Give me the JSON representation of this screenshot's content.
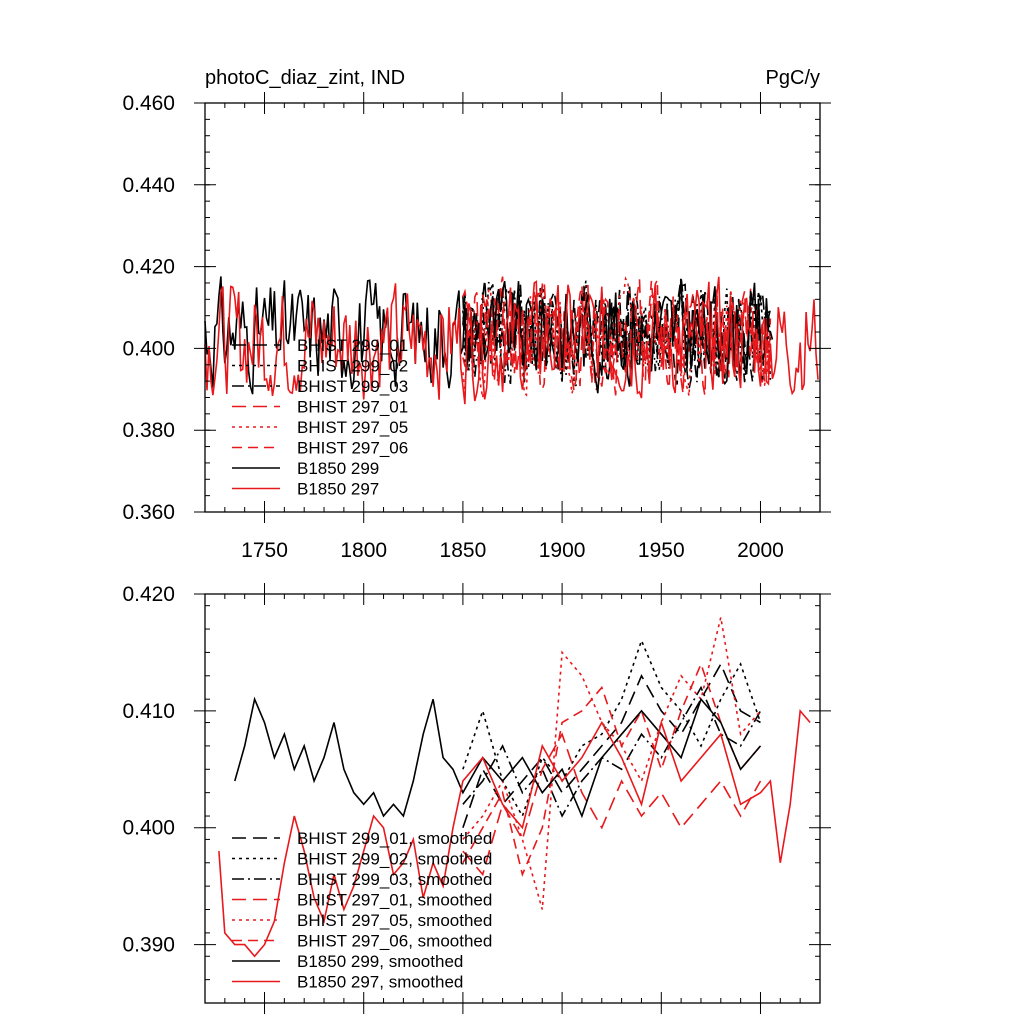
{
  "chart_data": [
    {
      "type": "line",
      "title": "photoC_diaz_zint, IND",
      "units": "PgC/y",
      "xlim": [
        1720,
        2030
      ],
      "ylim": [
        0.36,
        0.46
      ],
      "xticks": [
        1750,
        1800,
        1850,
        1900,
        1950,
        2000
      ],
      "xtick_labels": [
        "1750",
        "1800",
        "1850",
        "1900",
        "1950",
        "2000"
      ],
      "yticks": [
        0.36,
        0.38,
        0.4,
        0.42,
        0.44,
        0.46
      ],
      "ytick_labels": [
        "0.360",
        "0.380",
        "0.400",
        "0.420",
        "0.440",
        "0.460"
      ],
      "grid": false,
      "legend_position": "lower-left",
      "series": [
        {
          "name": "BHIST 299_01",
          "color": "#000000",
          "dash": "long-dash",
          "x_start": 1850,
          "x_end": 2005,
          "mean": 0.404,
          "amplitude": 0.011,
          "seed": 11
        },
        {
          "name": "BHIST 299_02",
          "color": "#000000",
          "dash": "dotted",
          "x_start": 1850,
          "x_end": 2005,
          "mean": 0.404,
          "amplitude": 0.011,
          "seed": 12
        },
        {
          "name": "BHIST 299_03",
          "color": "#000000",
          "dash": "dash-dot",
          "x_start": 1850,
          "x_end": 2005,
          "mean": 0.404,
          "amplitude": 0.011,
          "seed": 13
        },
        {
          "name": "BHIST 297_01",
          "color": "#e8191c",
          "dash": "long-dash",
          "x_start": 1850,
          "x_end": 2005,
          "mean": 0.403,
          "amplitude": 0.011,
          "seed": 21
        },
        {
          "name": "BHIST 297_05",
          "color": "#e8191c",
          "dash": "dotted",
          "x_start": 1850,
          "x_end": 2005,
          "mean": 0.403,
          "amplitude": 0.011,
          "seed": 22
        },
        {
          "name": "BHIST 297_06",
          "color": "#e8191c",
          "dash": "long-dash-2",
          "x_start": 1850,
          "x_end": 2005,
          "mean": 0.403,
          "amplitude": 0.011,
          "seed": 23
        },
        {
          "name": "B1850 299",
          "color": "#000000",
          "dash": "solid",
          "x_start": 1720,
          "x_end": 2006,
          "mean": 0.404,
          "amplitude": 0.011,
          "seed": 31
        },
        {
          "name": "B1850 297",
          "color": "#e8191c",
          "dash": "solid",
          "x_start": 1720,
          "x_end": 2029,
          "mean": 0.402,
          "amplitude": 0.012,
          "seed": 32
        }
      ]
    },
    {
      "type": "line",
      "title": "",
      "xlim": [
        1720,
        2030
      ],
      "ylim": [
        0.385,
        0.42
      ],
      "xticks": [
        1750,
        1800,
        1850,
        1900,
        1950,
        2000
      ],
      "yticks": [
        0.39,
        0.4,
        0.41,
        0.42
      ],
      "ytick_labels": [
        "0.390",
        "0.400",
        "0.410",
        "0.420"
      ],
      "grid": false,
      "legend_position": "lower-left",
      "series": [
        {
          "name": "BHIST 299_01, smoothed",
          "color": "#000000",
          "dash": "long-dash",
          "x": [
            1850,
            1860,
            1870,
            1880,
            1890,
            1900,
            1910,
            1920,
            1930,
            1940,
            1950,
            1960,
            1970,
            1980,
            1990,
            2000
          ],
          "y": [
            0.4,
            0.405,
            0.402,
            0.404,
            0.406,
            0.403,
            0.405,
            0.407,
            0.409,
            0.413,
            0.41,
            0.408,
            0.411,
            0.414,
            0.41,
            0.409
          ]
        },
        {
          "name": "BHIST 299_02, smoothed",
          "color": "#000000",
          "dash": "dotted",
          "x": [
            1850,
            1860,
            1870,
            1880,
            1890,
            1900,
            1910,
            1920,
            1930,
            1940,
            1950,
            1960,
            1970,
            1980,
            1990,
            2000
          ],
          "y": [
            0.405,
            0.41,
            0.404,
            0.401,
            0.406,
            0.404,
            0.407,
            0.408,
            0.411,
            0.416,
            0.412,
            0.41,
            0.407,
            0.411,
            0.414,
            0.409
          ]
        },
        {
          "name": "BHIST 299_03, smoothed",
          "color": "#000000",
          "dash": "dash-dot",
          "x": [
            1850,
            1860,
            1870,
            1880,
            1890,
            1900,
            1910,
            1920,
            1930,
            1940,
            1950,
            1960,
            1970,
            1980,
            1990,
            2000
          ],
          "y": [
            0.402,
            0.404,
            0.407,
            0.403,
            0.405,
            0.401,
            0.404,
            0.406,
            0.405,
            0.408,
            0.406,
            0.409,
            0.412,
            0.408,
            0.407,
            0.41
          ]
        },
        {
          "name": "BHIST 297_01, smoothed",
          "color": "#e8191c",
          "dash": "long-dash",
          "x": [
            1850,
            1860,
            1870,
            1880,
            1890,
            1900,
            1910,
            1920,
            1930,
            1940,
            1950,
            1960,
            1970,
            1980,
            1990,
            2000
          ],
          "y": [
            0.398,
            0.396,
            0.402,
            0.399,
            0.405,
            0.408,
            0.403,
            0.4,
            0.404,
            0.401,
            0.403,
            0.4,
            0.402,
            0.404,
            0.401,
            0.404
          ]
        },
        {
          "name": "BHIST 297_05, smoothed",
          "color": "#e8191c",
          "dash": "dotted",
          "x": [
            1850,
            1860,
            1870,
            1880,
            1890,
            1900,
            1910,
            1920,
            1930,
            1940,
            1950,
            1960,
            1970,
            1980,
            1990,
            2000
          ],
          "y": [
            0.399,
            0.401,
            0.404,
            0.399,
            0.393,
            0.415,
            0.413,
            0.409,
            0.407,
            0.404,
            0.409,
            0.413,
            0.411,
            0.418,
            0.408,
            0.41
          ]
        },
        {
          "name": "BHIST 297_06, smoothed",
          "color": "#e8191c",
          "dash": "long-dash-2",
          "x": [
            1850,
            1860,
            1870,
            1880,
            1890,
            1900,
            1910,
            1920,
            1930,
            1940,
            1950,
            1960,
            1970,
            1980,
            1990,
            2000
          ],
          "y": [
            0.397,
            0.4,
            0.403,
            0.396,
            0.4,
            0.409,
            0.41,
            0.412,
            0.407,
            0.41,
            0.405,
            0.41,
            0.414,
            0.409,
            0.405,
            0.407
          ]
        },
        {
          "name": "B1850 299, smoothed",
          "color": "#000000",
          "dash": "solid",
          "x": [
            1735,
            1740,
            1745,
            1750,
            1755,
            1760,
            1765,
            1770,
            1775,
            1780,
            1785,
            1790,
            1795,
            1800,
            1805,
            1810,
            1815,
            1820,
            1825,
            1830,
            1835,
            1840,
            1845,
            1850,
            1860,
            1870,
            1880,
            1890,
            1900,
            1910,
            1920,
            1930,
            1940,
            1950,
            1960,
            1970,
            1980,
            1990,
            2000
          ],
          "y": [
            0.404,
            0.407,
            0.411,
            0.409,
            0.406,
            0.408,
            0.405,
            0.407,
            0.404,
            0.406,
            0.409,
            0.405,
            0.403,
            0.402,
            0.403,
            0.401,
            0.402,
            0.401,
            0.404,
            0.408,
            0.411,
            0.406,
            0.405,
            0.403,
            0.406,
            0.404,
            0.406,
            0.403,
            0.405,
            0.401,
            0.406,
            0.408,
            0.41,
            0.408,
            0.406,
            0.411,
            0.409,
            0.405,
            0.407
          ]
        },
        {
          "name": "B1850 297, smoothed",
          "color": "#e8191c",
          "dash": "solid",
          "x": [
            1727,
            1730,
            1735,
            1740,
            1745,
            1750,
            1755,
            1760,
            1765,
            1770,
            1775,
            1780,
            1785,
            1790,
            1795,
            1800,
            1805,
            1810,
            1815,
            1820,
            1825,
            1830,
            1835,
            1840,
            1845,
            1850,
            1860,
            1870,
            1880,
            1890,
            1900,
            1910,
            1920,
            1930,
            1940,
            1950,
            1960,
            1970,
            1980,
            1990,
            2000,
            2005,
            2010,
            2015,
            2020,
            2025
          ],
          "y": [
            0.398,
            0.391,
            0.39,
            0.39,
            0.389,
            0.39,
            0.392,
            0.397,
            0.401,
            0.398,
            0.394,
            0.392,
            0.396,
            0.393,
            0.395,
            0.398,
            0.401,
            0.4,
            0.396,
            0.397,
            0.399,
            0.394,
            0.397,
            0.395,
            0.4,
            0.404,
            0.406,
            0.402,
            0.4,
            0.407,
            0.404,
            0.406,
            0.409,
            0.406,
            0.402,
            0.409,
            0.404,
            0.406,
            0.408,
            0.402,
            0.403,
            0.404,
            0.397,
            0.402,
            0.41,
            0.409
          ]
        }
      ]
    }
  ]
}
